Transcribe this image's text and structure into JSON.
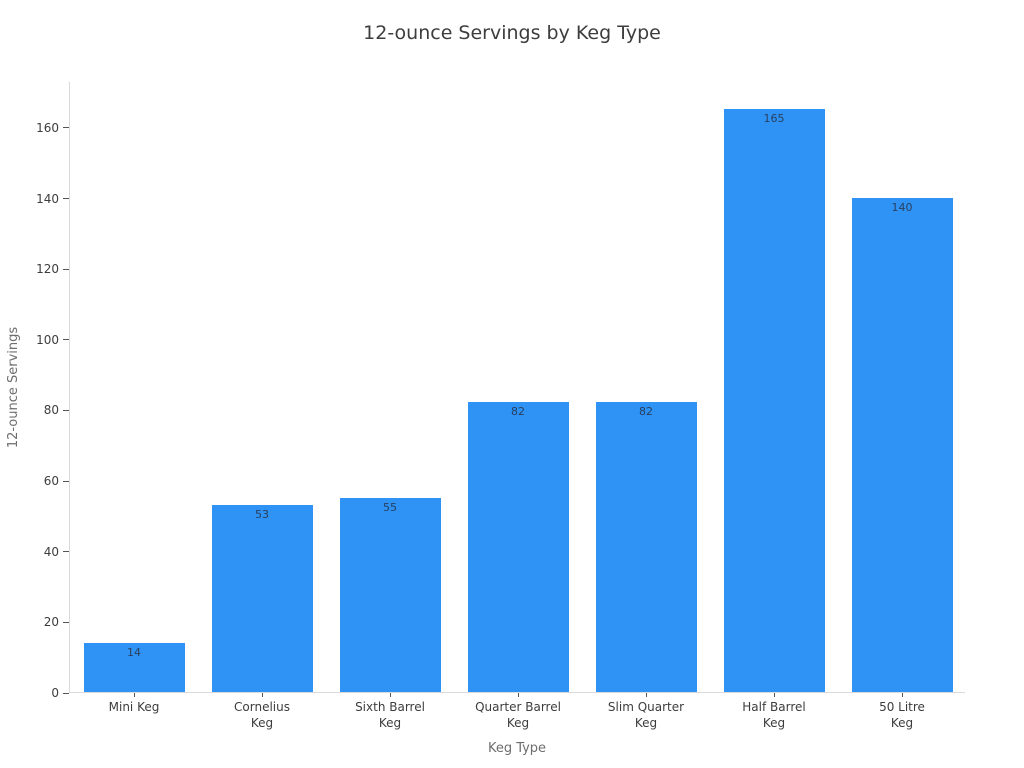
{
  "chart_data": {
    "type": "bar",
    "title": "12-ounce Servings by Keg Type",
    "xlabel": "Keg Type",
    "ylabel": "12-ounce Servings",
    "categories": [
      "Mini Keg",
      "Cornelius Keg",
      "Sixth Barrel Keg",
      "Quarter Barrel Keg",
      "Slim Quarter Keg",
      "Half Barrel Keg",
      "50 Litre Keg"
    ],
    "x_tick_lines": [
      [
        "Mini Keg"
      ],
      [
        "Cornelius",
        "Keg"
      ],
      [
        "Sixth Barrel",
        "Keg"
      ],
      [
        "Quarter Barrel",
        "Keg"
      ],
      [
        "Slim Quarter",
        "Keg"
      ],
      [
        "Half Barrel",
        "Keg"
      ],
      [
        "50 Litre",
        "Keg"
      ]
    ],
    "values": [
      14,
      53,
      55,
      82,
      82,
      165,
      140
    ],
    "bar_labels": [
      "14",
      "53",
      "55",
      "82",
      "82",
      "165",
      "140"
    ],
    "yticks": [
      0,
      20,
      40,
      60,
      80,
      100,
      120,
      140,
      160
    ],
    "ylim": [
      0,
      173
    ],
    "grid": false,
    "legend": "none",
    "colors": {
      "bar": "#2E93F5",
      "bar_label": "#2A3F5F",
      "axis_line": "#D9D9D9",
      "tick_mark": "#555555",
      "tick_label": "#3D3D3D",
      "axis_title": "#6E6E6E",
      "title": "#3D3D3D",
      "background": "#FFFFFF"
    }
  }
}
